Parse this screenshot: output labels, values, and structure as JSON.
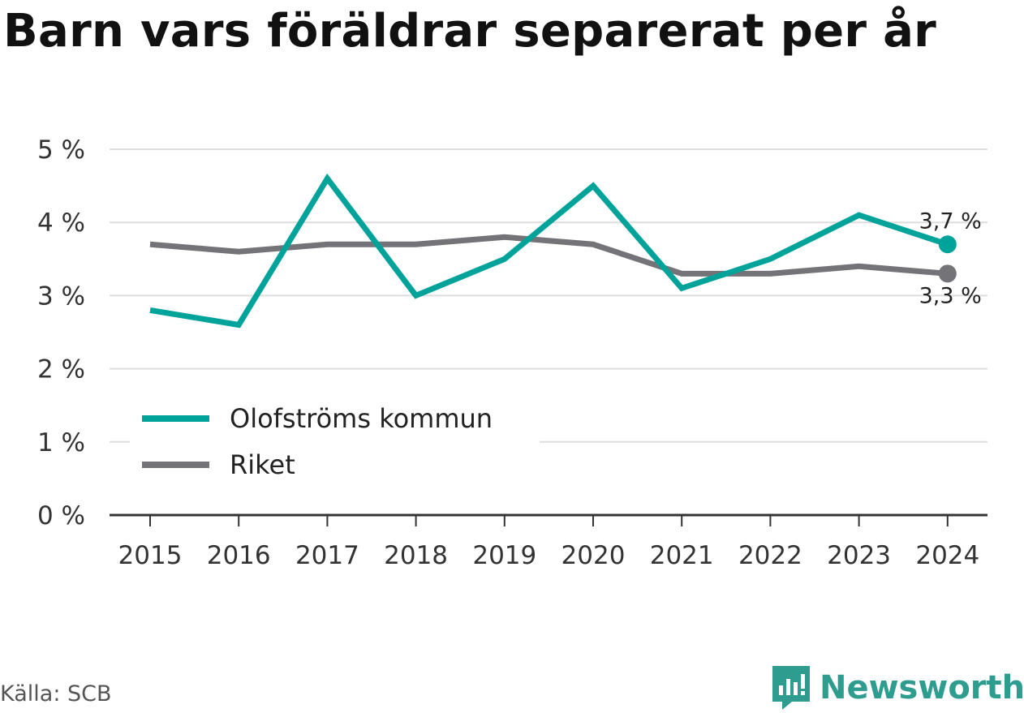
{
  "title": "Barn vars föräldrar separerat per år",
  "source": "Källa: SCB",
  "brand": {
    "name": "Newsworthy",
    "logo_icon": "newsworthy-logo-icon"
  },
  "colors": {
    "olofstrom": "#00a39a",
    "riket": "#747478",
    "grid": "#dddddd",
    "axis": "#333333"
  },
  "chart_data": {
    "type": "line",
    "x": [
      "2015",
      "2016",
      "2017",
      "2018",
      "2019",
      "2020",
      "2021",
      "2022",
      "2023",
      "2024"
    ],
    "y_ticks": [
      "0 %",
      "1 %",
      "2 %",
      "3 %",
      "4 %",
      "5 %"
    ],
    "ylim": [
      0,
      5
    ],
    "grid": true,
    "legend_position": "bottom-left",
    "series": [
      {
        "name": "Olofströms kommun",
        "color": "#00a39a",
        "values": [
          2.8,
          2.6,
          4.6,
          3.0,
          3.5,
          4.5,
          3.1,
          3.5,
          4.1,
          3.7
        ],
        "end_label": "3,7 %"
      },
      {
        "name": "Riket",
        "color": "#747478",
        "values": [
          3.7,
          3.6,
          3.7,
          3.7,
          3.8,
          3.7,
          3.3,
          3.3,
          3.4,
          3.3
        ],
        "end_label": "3,3 %"
      }
    ]
  }
}
